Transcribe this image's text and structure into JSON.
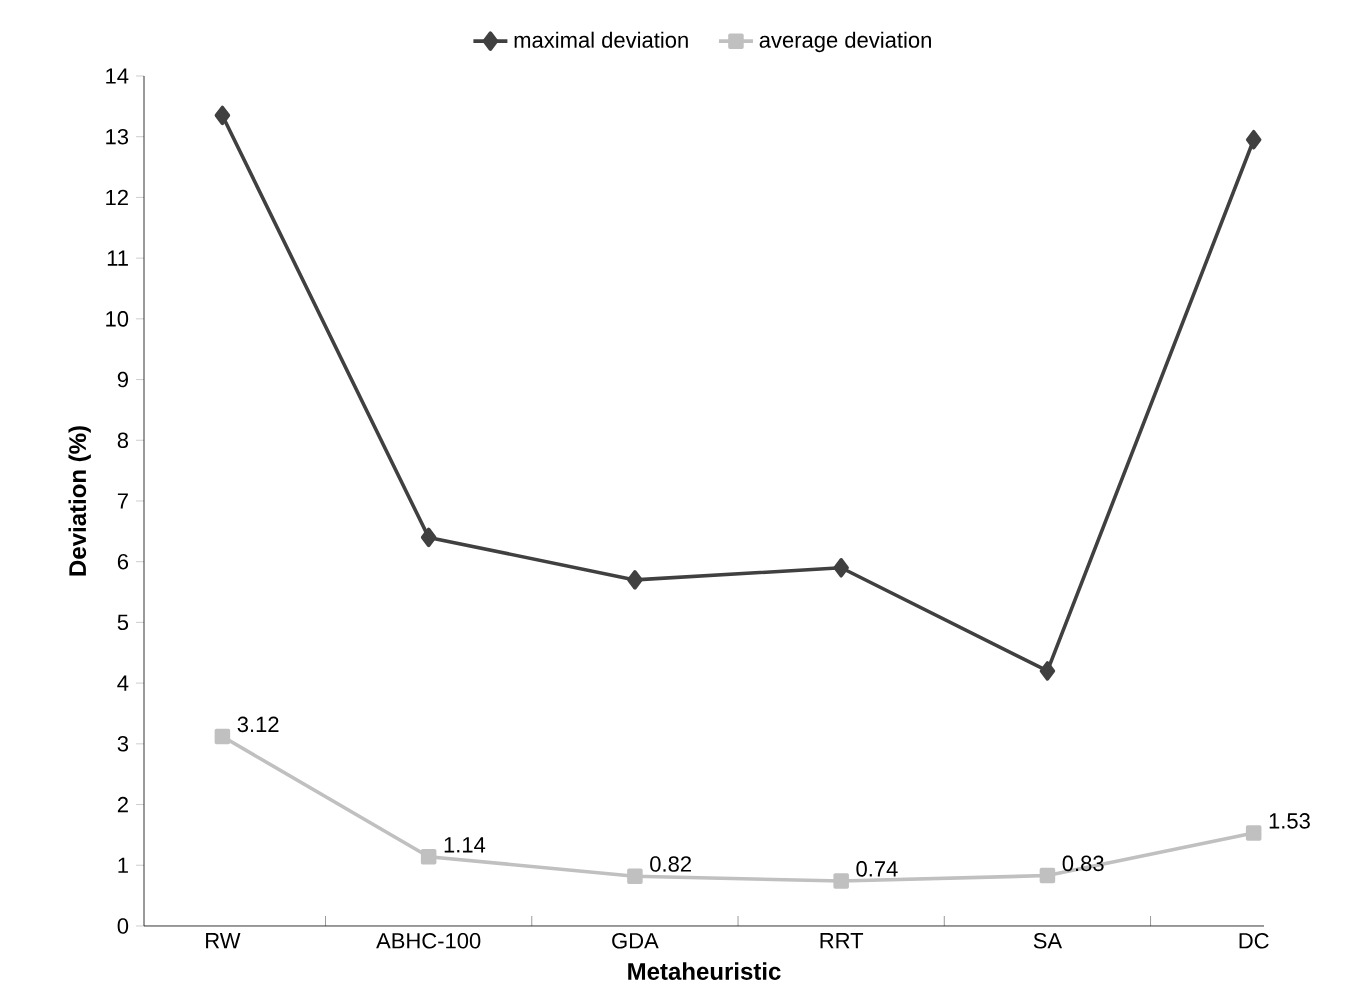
{
  "chart_data": {
    "type": "line",
    "xlabel": "Metaheuristic",
    "ylabel": "Deviation (%)",
    "categories": [
      "RW",
      "ABHC-100",
      "GDA",
      "RRT",
      "SA",
      "DC"
    ],
    "series": [
      {
        "name": "maximal deviation",
        "color": "#404040",
        "marker": "diamond",
        "values": [
          13.35,
          6.4,
          5.7,
          5.9,
          4.2,
          12.95
        ]
      },
      {
        "name": "average deviation",
        "color": "#c0c0c0",
        "marker": "square",
        "values": [
          3.12,
          1.14,
          0.82,
          0.74,
          0.83,
          1.53
        ],
        "value_labels": [
          "3.12",
          "1.14",
          "0.82",
          "0.74",
          "0.83",
          "1.53"
        ]
      }
    ],
    "ylim": [
      0,
      14
    ],
    "yticks": [
      0,
      1,
      2,
      3,
      4,
      5,
      6,
      7,
      8,
      9,
      10,
      11,
      12,
      13,
      14
    ],
    "legend": "top"
  }
}
